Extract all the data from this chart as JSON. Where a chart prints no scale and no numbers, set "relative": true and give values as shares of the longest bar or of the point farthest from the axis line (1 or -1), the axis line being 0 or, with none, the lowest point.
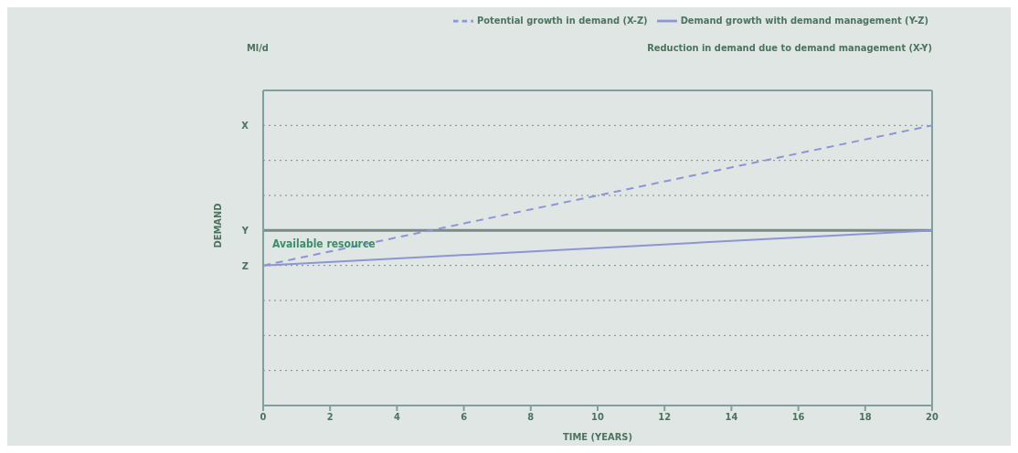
{
  "chart_data": {
    "type": "line",
    "xlabel": "TIME (YEARS)",
    "ylabel": "DEMAND",
    "x": [
      0,
      20
    ],
    "relative": true,
    "series": [
      {
        "name": "Potential growth in demand (X-Z)",
        "color": "#8c96d6",
        "values": [
          0.5,
          1
        ],
        "line_style": "dashed"
      },
      {
        "name": "Demand growth with demand management (Y-Z)",
        "color": "#8c96d6",
        "values": [
          0.5,
          0.625
        ],
        "line_style": "solid"
      }
    ],
    "xlim": [
      0,
      20
    ],
    "xticks": [
      0,
      2,
      4,
      6,
      8,
      10,
      12,
      14,
      16,
      18,
      20
    ],
    "ref_lines": [
      {
        "axis": "y",
        "value": 0.625,
        "label": "Available resource",
        "color": "#7d8a8a"
      }
    ],
    "annotations": [
      "Reduction in demand due to demand management (X-Y)",
      "Ml/d",
      "X",
      "Y",
      "Z"
    ],
    "grid": "y",
    "legend": "top right",
    "marker": "none"
  }
}
